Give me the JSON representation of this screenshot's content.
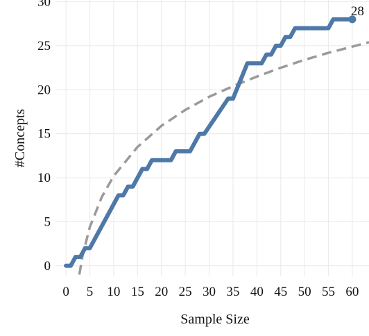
{
  "chart_data": {
    "type": "line",
    "title": "",
    "xlabel": "Sample Size",
    "ylabel": "#Concepts",
    "xlim": [
      -2.2,
      63.5
    ],
    "ylim": [
      -1.2,
      30.2
    ],
    "x_ticks": [
      0,
      5,
      10,
      15,
      20,
      25,
      30,
      35,
      40,
      45,
      50,
      55,
      60
    ],
    "y_ticks": [
      0,
      5,
      10,
      15,
      20,
      25,
      30
    ],
    "grid": true,
    "legend": "none",
    "colors": {
      "observed": "#4e79a7",
      "fit": "#9a9a9a",
      "grid": "#ececec"
    },
    "series": [
      {
        "style": "solid",
        "end_label": "28",
        "points": [
          [
            0,
            0
          ],
          [
            1,
            0
          ],
          [
            2,
            1
          ],
          [
            3,
            1
          ],
          [
            4,
            2
          ],
          [
            5,
            2
          ],
          [
            11,
            8
          ],
          [
            12,
            8
          ],
          [
            13,
            9
          ],
          [
            14,
            9
          ],
          [
            16,
            11
          ],
          [
            17,
            11
          ],
          [
            18,
            12
          ],
          [
            22,
            12
          ],
          [
            23,
            13
          ],
          [
            26,
            13
          ],
          [
            28,
            15
          ],
          [
            29,
            15
          ],
          [
            34,
            19
          ],
          [
            35,
            19
          ],
          [
            38,
            23
          ],
          [
            41,
            23
          ],
          [
            42,
            24
          ],
          [
            43,
            24
          ],
          [
            44,
            25
          ],
          [
            45,
            25
          ],
          [
            46,
            26
          ],
          [
            47,
            26
          ],
          [
            48,
            27
          ],
          [
            55,
            27
          ],
          [
            56,
            28
          ],
          [
            60,
            28
          ]
        ]
      },
      {
        "style": "dashed",
        "points": [
          [
            2.8,
            -1.0
          ],
          [
            3.5,
            1.2
          ],
          [
            5,
            4.4
          ],
          [
            7.5,
            7.8
          ],
          [
            10,
            10.2
          ],
          [
            15,
            13.5
          ],
          [
            20,
            15.9
          ],
          [
            25,
            17.7
          ],
          [
            30,
            19.2
          ],
          [
            35,
            20.4
          ],
          [
            40,
            21.5
          ],
          [
            45,
            22.5
          ],
          [
            50,
            23.4
          ],
          [
            55,
            24.2
          ],
          [
            60,
            24.9
          ],
          [
            63.5,
            25.4
          ]
        ]
      }
    ]
  }
}
